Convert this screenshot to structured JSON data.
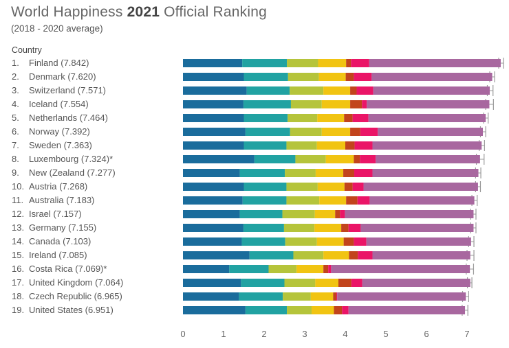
{
  "header": {
    "title_prefix": "World Happiness ",
    "title_year": "2021",
    "title_suffix": " Official Ranking",
    "subtitle": "(2018 - 2020 average)",
    "column_label": "Country"
  },
  "colors": {
    "segments": [
      "#1a6c9c",
      "#21a2a2",
      "#b5c43b",
      "#f1c412",
      "#c2441c",
      "#ea1567",
      "#a8679f"
    ],
    "whisker": "#999999",
    "axis_text": "#666666"
  },
  "chart_data": {
    "type": "bar",
    "title": "World Happiness 2021 Official Ranking",
    "subtitle": "(2018 - 2020 average)",
    "stacked": true,
    "orientation": "horizontal",
    "xlim": [
      0,
      8
    ],
    "xticks": [
      "0",
      "1",
      "2",
      "3",
      "4",
      "5",
      "6",
      "7"
    ],
    "categories": [
      "1.|Finland (7.842)",
      "2.|Denmark (7.620)",
      "3.|Switzerland (7.571)",
      "4.|Iceland (7.554)",
      "5.|Netherlands (7.464)",
      "6.|Norway (7.392)",
      "7.|Sweden (7.363)",
      "8.|Luxembourg (7.324)*",
      "9.|New (Zealand (7.277)",
      "10.|Austria (7.268)",
      "11.|Australia (7.183)",
      "12.|Israel (7.157)",
      "13.|Germany (7.155)",
      "14.|Canada (7.103)",
      "15.|Ireland (7.085)",
      "16.|Costa Rica (7.069)*",
      "17.|United Kingdom (7.064)",
      "18.|Czech Republic (6.965)",
      "19.|United States (6.951)"
    ],
    "scores": [
      7.842,
      7.62,
      7.571,
      7.554,
      7.464,
      7.392,
      7.363,
      7.324,
      7.277,
      7.268,
      7.183,
      7.157,
      7.155,
      7.103,
      7.085,
      7.069,
      7.064,
      6.965,
      6.951
    ],
    "segments": [
      [
        1.46,
        1.1,
        0.77,
        0.69,
        0.12,
        0.45,
        3.24
      ],
      [
        1.5,
        1.09,
        0.76,
        0.66,
        0.2,
        0.44,
        2.97
      ],
      [
        1.57,
        1.06,
        0.83,
        0.66,
        0.16,
        0.41,
        2.87
      ],
      [
        1.49,
        1.17,
        0.76,
        0.7,
        0.29,
        0.12,
        3.02
      ],
      [
        1.5,
        1.08,
        0.73,
        0.66,
        0.21,
        0.39,
        2.89
      ],
      [
        1.54,
        1.1,
        0.78,
        0.7,
        0.25,
        0.43,
        2.59
      ],
      [
        1.5,
        1.05,
        0.75,
        0.7,
        0.23,
        0.44,
        2.69
      ],
      [
        1.76,
        1.01,
        0.75,
        0.69,
        0.15,
        0.39,
        2.57
      ],
      [
        1.4,
        1.11,
        0.76,
        0.68,
        0.27,
        0.45,
        2.61
      ],
      [
        1.5,
        1.05,
        0.77,
        0.66,
        0.2,
        0.27,
        2.82
      ],
      [
        1.47,
        1.08,
        0.81,
        0.66,
        0.28,
        0.3,
        2.58
      ],
      [
        1.4,
        1.05,
        0.8,
        0.5,
        0.12,
        0.12,
        3.17
      ],
      [
        1.49,
        1.0,
        0.75,
        0.66,
        0.18,
        0.3,
        2.78
      ],
      [
        1.45,
        1.07,
        0.78,
        0.66,
        0.25,
        0.31,
        2.58
      ],
      [
        1.64,
        1.08,
        0.74,
        0.63,
        0.22,
        0.36,
        2.41
      ],
      [
        1.14,
        0.97,
        0.69,
        0.66,
        0.12,
        0.07,
        3.42
      ],
      [
        1.43,
        1.07,
        0.76,
        0.57,
        0.32,
        0.27,
        2.66
      ],
      [
        1.38,
        1.08,
        0.69,
        0.55,
        0.08,
        0.02,
        3.17
      ],
      [
        1.54,
        1.02,
        0.61,
        0.55,
        0.2,
        0.16,
        2.87
      ]
    ],
    "ci_high": [
      7.9,
      7.68,
      7.64,
      7.65,
      7.52,
      7.46,
      7.43,
      7.42,
      7.34,
      7.33,
      7.25,
      7.22,
      7.22,
      7.17,
      7.17,
      7.16,
      7.12,
      7.04,
      7.02
    ],
    "ci_low": [
      7.78,
      7.56,
      7.5,
      7.46,
      7.41,
      7.33,
      7.3,
      7.23,
      7.21,
      7.21,
      7.12,
      7.09,
      7.09,
      7.04,
      7.0,
      6.98,
      7.01,
      6.89,
      6.88
    ]
  }
}
